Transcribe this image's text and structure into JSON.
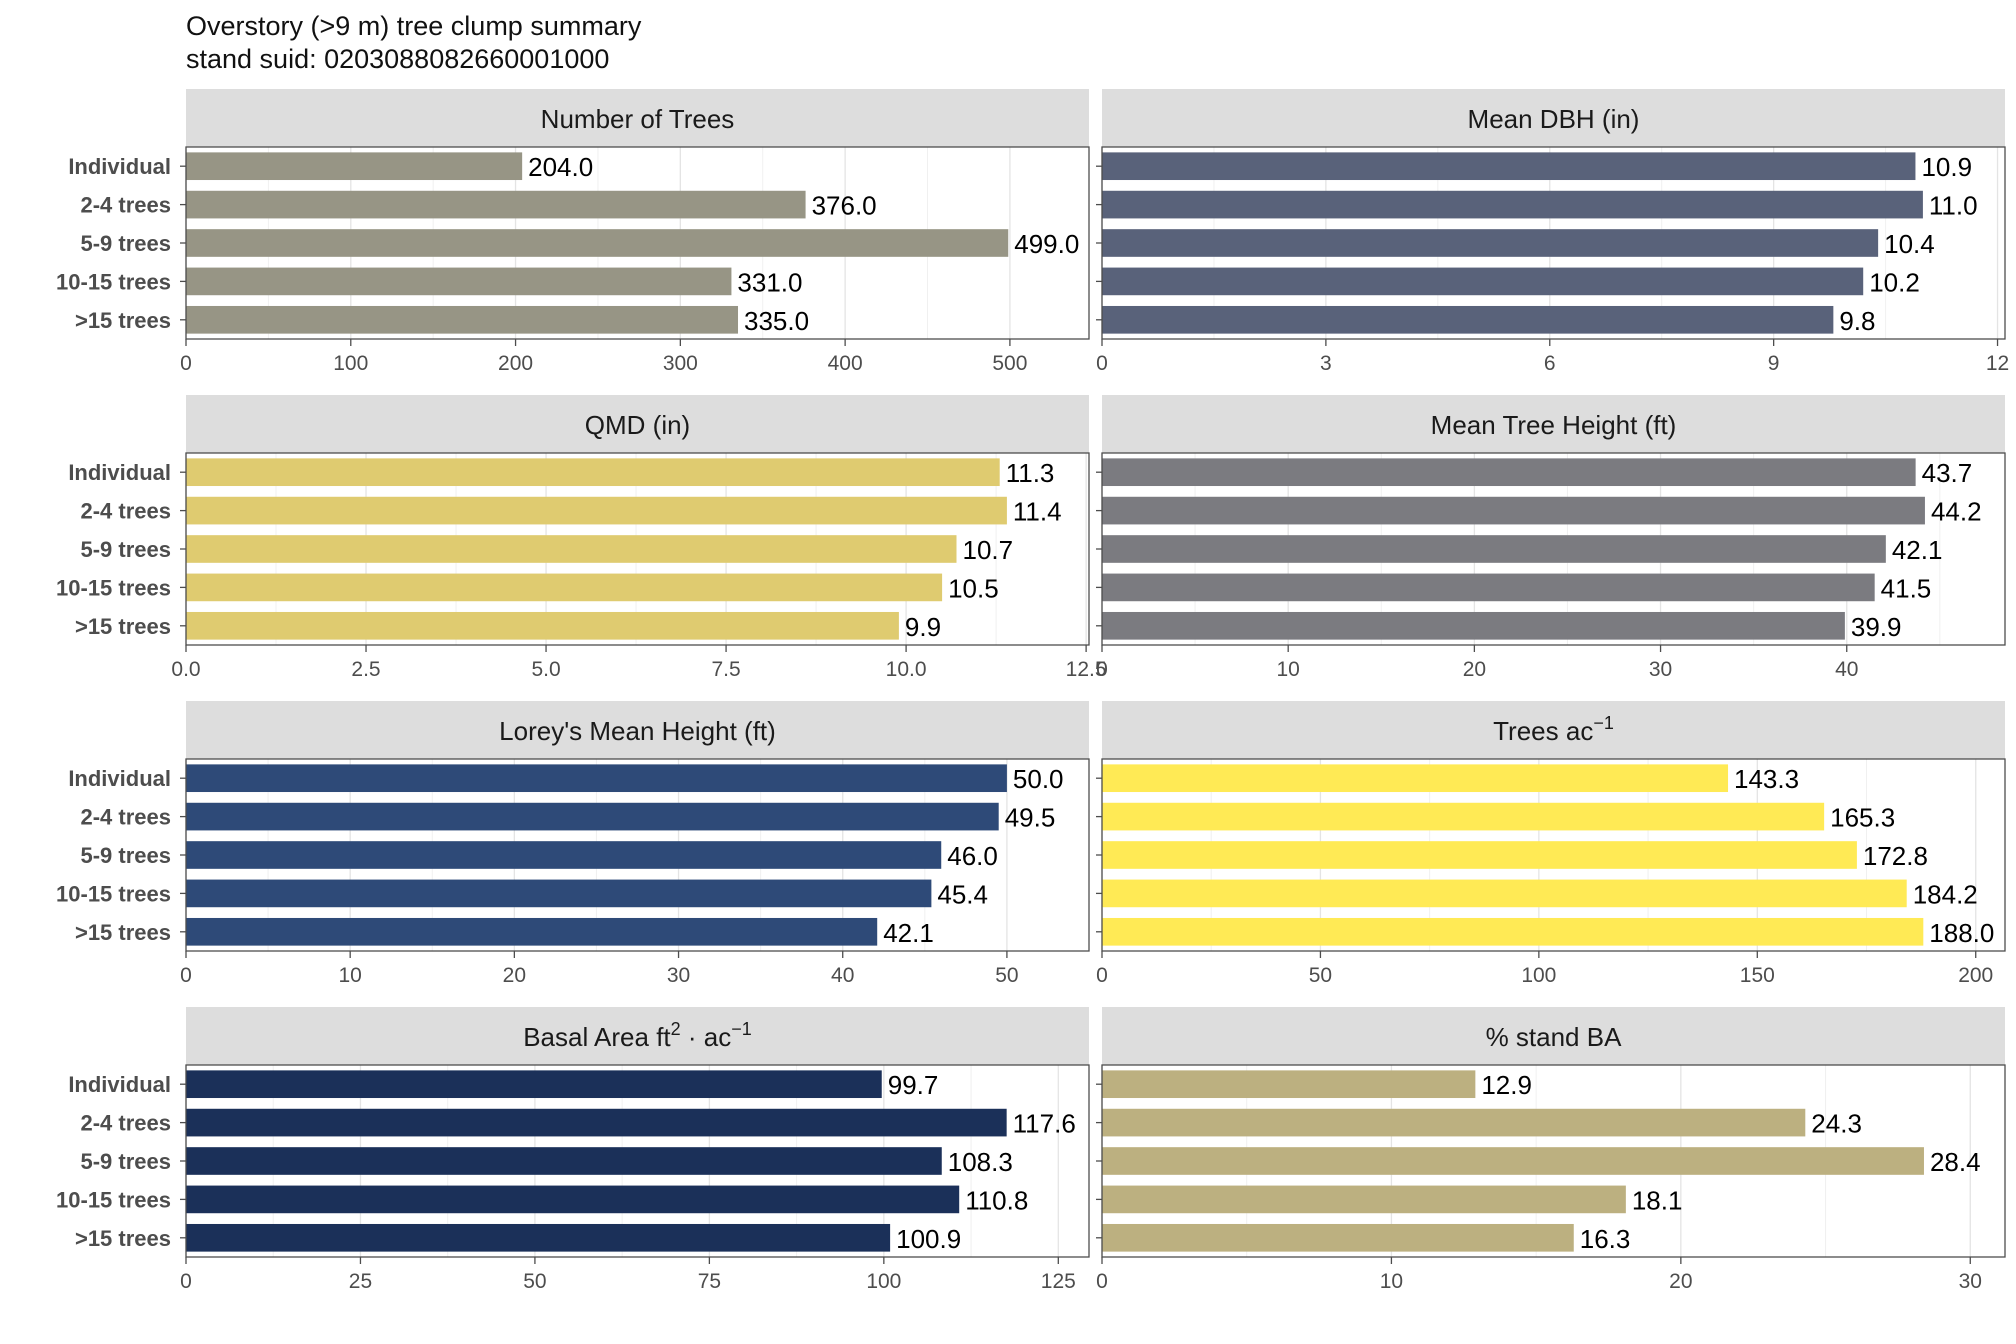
{
  "title": "Overstory (>9 m) tree clump summary",
  "subtitle": "stand suid: 0203088082660001000",
  "chart_data": [
    {
      "type": "bar",
      "orientation": "horizontal",
      "title": "Number of Trees",
      "categories": [
        "Individual",
        "2-4 trees",
        "5-9 trees",
        "10-15 trees",
        ">15 trees"
      ],
      "values": [
        204.0,
        376.0,
        499.0,
        331.0,
        335.0
      ],
      "value_labels": [
        "204.0",
        "376.0",
        "499.0",
        "331.0",
        "335.0"
      ],
      "xlim": [
        0,
        548
      ],
      "ticks": [
        0,
        100,
        200,
        300,
        400,
        500
      ],
      "tick_labels": [
        "0",
        "100",
        "200",
        "300",
        "400",
        "500"
      ],
      "color": "#979585"
    },
    {
      "type": "bar",
      "orientation": "horizontal",
      "title": "Mean DBH (in)",
      "categories": [
        "Individual",
        "2-4 trees",
        "5-9 trees",
        "10-15 trees",
        ">15 trees"
      ],
      "values": [
        10.9,
        11.0,
        10.4,
        10.2,
        9.8
      ],
      "value_labels": [
        "10.9",
        "11.0",
        "10.4",
        "10.2",
        "9.8"
      ],
      "xlim": [
        0,
        12.1
      ],
      "ticks": [
        0,
        3,
        6,
        9,
        12
      ],
      "tick_labels": [
        "0",
        "3",
        "6",
        "9",
        "12"
      ],
      "color": "#59627a"
    },
    {
      "type": "bar",
      "orientation": "horizontal",
      "title": "QMD (in)",
      "categories": [
        "Individual",
        "2-4 trees",
        "5-9 trees",
        "10-15 trees",
        ">15 trees"
      ],
      "values": [
        11.3,
        11.4,
        10.7,
        10.5,
        9.9
      ],
      "value_labels": [
        "11.3",
        "11.4",
        "10.7",
        "10.5",
        "9.9"
      ],
      "xlim": [
        0,
        12.54
      ],
      "ticks": [
        0,
        2.5,
        5,
        7.5,
        10,
        12.5
      ],
      "tick_labels": [
        "0.0",
        "2.5",
        "5.0",
        "7.5",
        "10.0",
        "12.5"
      ],
      "color": "#dfcb70"
    },
    {
      "type": "bar",
      "orientation": "horizontal",
      "title": "Mean Tree Height (ft)",
      "categories": [
        "Individual",
        "2-4 trees",
        "5-9 trees",
        "10-15 trees",
        ">15 trees"
      ],
      "values": [
        43.7,
        44.2,
        42.1,
        41.5,
        39.9
      ],
      "value_labels": [
        "43.7",
        "44.2",
        "42.1",
        "41.5",
        "39.9"
      ],
      "xlim": [
        0,
        48.5
      ],
      "ticks": [
        0,
        10,
        20,
        30,
        40
      ],
      "tick_labels": [
        "0",
        "10",
        "20",
        "30",
        "40"
      ],
      "color": "#7b7b80"
    },
    {
      "type": "bar",
      "orientation": "horizontal",
      "title": "Lorey's Mean Height (ft)",
      "categories": [
        "Individual",
        "2-4 trees",
        "5-9 trees",
        "10-15 trees",
        ">15 trees"
      ],
      "values": [
        50.0,
        49.5,
        46.0,
        45.4,
        42.1
      ],
      "value_labels": [
        "50.0",
        "49.5",
        "46.0",
        "45.4",
        "42.1"
      ],
      "xlim": [
        0,
        55
      ],
      "ticks": [
        0,
        10,
        20,
        30,
        40,
        50
      ],
      "tick_labels": [
        "0",
        "10",
        "20",
        "30",
        "40",
        "50"
      ],
      "color": "#2e4a78"
    },
    {
      "type": "bar",
      "orientation": "horizontal",
      "title": "Trees ac",
      "title_superscript": "−1",
      "categories": [
        "Individual",
        "2-4 trees",
        "5-9 trees",
        "10-15 trees",
        ">15 trees"
      ],
      "values": [
        143.3,
        165.3,
        172.8,
        184.2,
        188.0
      ],
      "value_labels": [
        "143.3",
        "165.3",
        "172.8",
        "184.2",
        "188.0"
      ],
      "xlim": [
        0,
        206.7
      ],
      "ticks": [
        0,
        50,
        100,
        150,
        200
      ],
      "tick_labels": [
        "0",
        "50",
        "100",
        "150",
        "200"
      ],
      "color": "#ffea55"
    },
    {
      "type": "bar",
      "orientation": "horizontal",
      "title": "Basal Area ft",
      "title_superscript": "2",
      "title_rest": " · ac",
      "title_superscript2": "−1",
      "categories": [
        "Individual",
        "2-4 trees",
        "5-9 trees",
        "10-15 trees",
        ">15 trees"
      ],
      "values": [
        99.7,
        117.6,
        108.3,
        110.8,
        100.9
      ],
      "value_labels": [
        "99.7",
        "117.6",
        "108.3",
        "110.8",
        "100.9"
      ],
      "xlim": [
        0,
        129.4
      ],
      "ticks": [
        0,
        25,
        50,
        75,
        100,
        125
      ],
      "tick_labels": [
        "0",
        "25",
        "50",
        "75",
        "100",
        "125"
      ],
      "color": "#1b3059"
    },
    {
      "type": "bar",
      "orientation": "horizontal",
      "title": "% stand BA",
      "categories": [
        "Individual",
        "2-4 trees",
        "5-9 trees",
        "10-15 trees",
        ">15 trees"
      ],
      "values": [
        12.9,
        24.3,
        28.4,
        18.1,
        16.3
      ],
      "value_labels": [
        "12.9",
        "24.3",
        "28.4",
        "18.1",
        "16.3"
      ],
      "xlim": [
        0,
        31.2
      ],
      "ticks": [
        0,
        10,
        20,
        30
      ],
      "tick_labels": [
        "0",
        "10",
        "20",
        "30"
      ],
      "color": "#bcb080"
    }
  ]
}
